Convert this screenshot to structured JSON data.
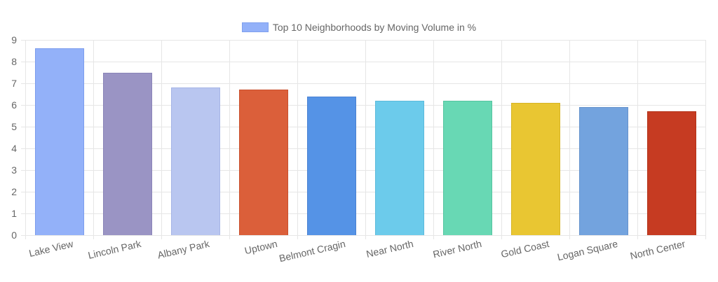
{
  "chart_data": {
    "type": "bar",
    "title": "",
    "legend": [
      {
        "label": "Top 10 Neighborhoods by Moving Volume in %",
        "color": "#93b1f9"
      }
    ],
    "legend_position": "top",
    "xlabel": "",
    "ylabel": "",
    "ylim": [
      0,
      9
    ],
    "yticks": [
      0,
      1,
      2,
      3,
      4,
      5,
      6,
      7,
      8,
      9
    ],
    "grid": true,
    "categories": [
      "Lake View",
      "Lincoln Park",
      "Albany Park",
      "Uptown",
      "Belmont Cragin",
      "Near North",
      "River North",
      "Gold Coast",
      "Logan Square",
      "North Center"
    ],
    "series": [
      {
        "name": "Top 10 Neighborhoods by Moving Volume in %",
        "values": [
          8.6,
          7.5,
          6.8,
          6.7,
          6.4,
          6.2,
          6.2,
          6.1,
          5.9,
          5.7
        ],
        "colors": [
          "#93b1f9",
          "#9a94c4",
          "#b9c6f0",
          "#db5f3a",
          "#5593e6",
          "#6ccbeb",
          "#68d8b4",
          "#e9c632",
          "#73a3de",
          "#c63b22"
        ],
        "border_colors": [
          "#7d9ded",
          "#8a84b8",
          "#a6b5e6",
          "#c9502d",
          "#4a82d2",
          "#5cbadb",
          "#55c4a0",
          "#d6b426",
          "#6592cc",
          "#b33218"
        ]
      }
    ]
  }
}
